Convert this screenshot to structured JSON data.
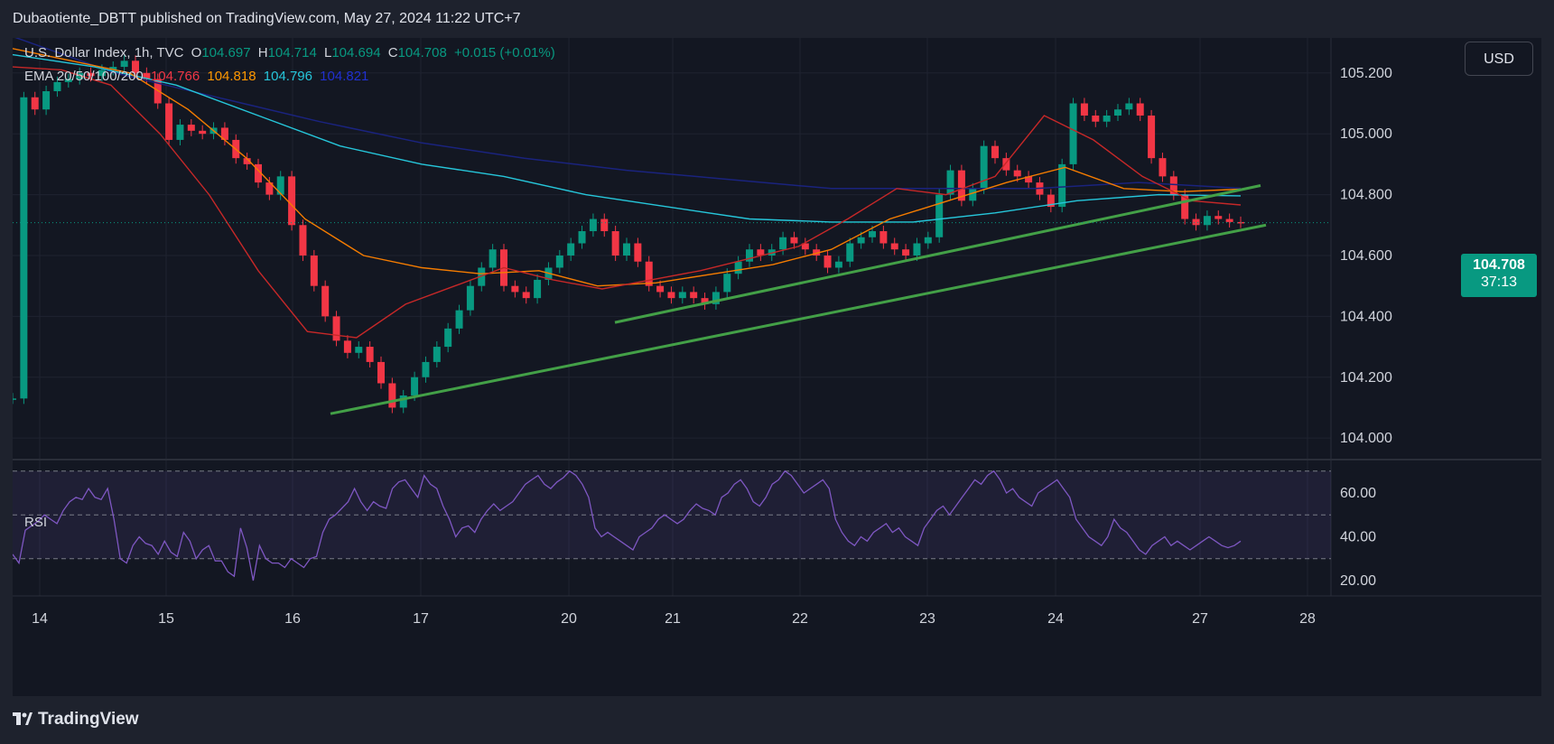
{
  "header": {
    "published": "Dubaotiente_DBTT published on TradingView.com, May 27, 2024 11:22 UTC+7"
  },
  "legend": {
    "symbol": "U.S. Dollar Index, 1h, TVC",
    "o_label": "O",
    "o_value": "104.697",
    "h_label": "H",
    "h_value": "104.714",
    "l_label": "L",
    "l_value": "104.694",
    "c_label": "C",
    "c_value": "104.708",
    "change": "+0.015 (+0.01%)",
    "ema_label": "EMA 20/50/100/200",
    "ema20": "104.766",
    "ema50": "104.818",
    "ema100": "104.796",
    "ema200": "104.821"
  },
  "currency_button": "USD",
  "last_price": {
    "value": "104.708",
    "countdown": "37:13"
  },
  "rsi": {
    "label": "RSI",
    "ticks": [
      "60.00",
      "40.00",
      "20.00"
    ]
  },
  "price_axis": {
    "ticks": [
      "105.200",
      "105.000",
      "104.800",
      "104.600",
      "104.400",
      "104.200",
      "104.000"
    ]
  },
  "time_axis": {
    "labels": [
      "14",
      "15",
      "16",
      "17",
      "20",
      "21",
      "22",
      "23",
      "24",
      "27",
      "28"
    ]
  },
  "footer": {
    "brand": "TradingView"
  },
  "colors": {
    "background": "#131722",
    "up": "#089981",
    "down": "#f23645",
    "ema20": "#c62828",
    "ema50": "#f57c00",
    "ema100": "#26c6da",
    "ema200": "#1a237e",
    "trendline": "#43a047",
    "rsi": "#7e57c2"
  },
  "chart_data": {
    "type": "candlestick",
    "y_unit": "index points",
    "ylim": [
      103.95,
      105.33
    ],
    "price_series": [
      104.13,
      105.12,
      105.08,
      105.14,
      105.17,
      105.18,
      105.2,
      105.19,
      105.21,
      105.22,
      105.24,
      105.2,
      105.18,
      105.1,
      104.98,
      105.03,
      105.01,
      105.0,
      105.02,
      104.98,
      104.92,
      104.9,
      104.84,
      104.8,
      104.86,
      104.7,
      104.6,
      104.5,
      104.4,
      104.32,
      104.28,
      104.3,
      104.25,
      104.18,
      104.1,
      104.14,
      104.2,
      104.25,
      104.3,
      104.36,
      104.42,
      104.5,
      104.56,
      104.62,
      104.5,
      104.48,
      104.46,
      104.52,
      104.56,
      104.6,
      104.64,
      104.68,
      104.72,
      104.68,
      104.6,
      104.64,
      104.58,
      104.5,
      104.48,
      104.46,
      104.48,
      104.46,
      104.44,
      104.48,
      104.54,
      104.58,
      104.62,
      104.6,
      104.62,
      104.66,
      104.64,
      104.62,
      104.6,
      104.56,
      104.58,
      104.64,
      104.66,
      104.68,
      104.64,
      104.62,
      104.6,
      104.64,
      104.66,
      104.8,
      104.88,
      104.78,
      104.82,
      104.96,
      104.92,
      104.88,
      104.86,
      104.84,
      104.8,
      104.76,
      104.9,
      105.1,
      105.06,
      105.04,
      105.06,
      105.08,
      105.1,
      105.06,
      104.92,
      104.86,
      104.8,
      104.72,
      104.7,
      104.73,
      104.72,
      104.71,
      104.708
    ],
    "ema_20": [
      105.22,
      105.21,
      105.16,
      105.0,
      104.8,
      104.55,
      104.35,
      104.33,
      104.44,
      104.5,
      104.56,
      104.52,
      104.49,
      104.52,
      104.55,
      104.59,
      104.63,
      104.72,
      104.82,
      104.8,
      104.86,
      105.06,
      104.98,
      104.86,
      104.78,
      104.766
    ],
    "ema_50": [
      105.28,
      105.24,
      105.2,
      105.08,
      104.92,
      104.72,
      104.6,
      104.56,
      104.54,
      104.55,
      104.5,
      104.51,
      104.54,
      104.57,
      104.62,
      104.72,
      104.78,
      104.84,
      104.89,
      104.82,
      104.81,
      104.818
    ],
    "ema_100": [
      105.26,
      105.22,
      105.16,
      105.06,
      104.96,
      104.9,
      104.86,
      104.8,
      104.76,
      104.72,
      104.71,
      104.71,
      104.74,
      104.78,
      104.8,
      104.796
    ],
    "ema_200": [
      105.32,
      105.2,
      105.12,
      105.04,
      104.97,
      104.92,
      104.88,
      104.85,
      104.82,
      104.82,
      104.82,
      104.84,
      104.821
    ],
    "trendlines": [
      {
        "from": [
          "16",
          104.08
        ],
        "to": [
          "28",
          104.7
        ]
      },
      {
        "from": [
          "20",
          104.38
        ],
        "to": [
          "28",
          104.83
        ]
      }
    ],
    "rsi": {
      "ylim": [
        13,
        74
      ],
      "bands": [
        30,
        70
      ],
      "midline": 50,
      "values": [
        32,
        28,
        43,
        45,
        47,
        50,
        48,
        46,
        52,
        56,
        58,
        57,
        62,
        58,
        57,
        62,
        48,
        30,
        28,
        36,
        40,
        37,
        36,
        32,
        38,
        33,
        31,
        42,
        38,
        30,
        34,
        36,
        29,
        29,
        24,
        22,
        44,
        35,
        20,
        36,
        30,
        28,
        28,
        26,
        30,
        28,
        26,
        30,
        31,
        42,
        48,
        50,
        53,
        56,
        62,
        56,
        52,
        56,
        54,
        53,
        62,
        65,
        66,
        62,
        58,
        68,
        64,
        62,
        54,
        48,
        40,
        44,
        45,
        42,
        48,
        52,
        55,
        52,
        54,
        56,
        60,
        64,
        66,
        68,
        64,
        62,
        65,
        67,
        70,
        68,
        64,
        58,
        44,
        40,
        42,
        40,
        38,
        36,
        34,
        40,
        42,
        44,
        48,
        50,
        48,
        46,
        48,
        52,
        55,
        53,
        52,
        50,
        58,
        60,
        64,
        66,
        62,
        56,
        54,
        58,
        64,
        66,
        70,
        68,
        64,
        60,
        62,
        64,
        66,
        62,
        48,
        42,
        38,
        36,
        40,
        38,
        42,
        44,
        46,
        42,
        44,
        40,
        38,
        36,
        44,
        48,
        52,
        54,
        50,
        54,
        58,
        62,
        66,
        64,
        68,
        70,
        66,
        60,
        62,
        58,
        56,
        54,
        60,
        62,
        64,
        66,
        62,
        58,
        48,
        44,
        40,
        38,
        36,
        40,
        48,
        44,
        42,
        38,
        34,
        32,
        36,
        38,
        40,
        36,
        38,
        36,
        34,
        36,
        38,
        40,
        38,
        36,
        35,
        36,
        38
      ]
    }
  }
}
